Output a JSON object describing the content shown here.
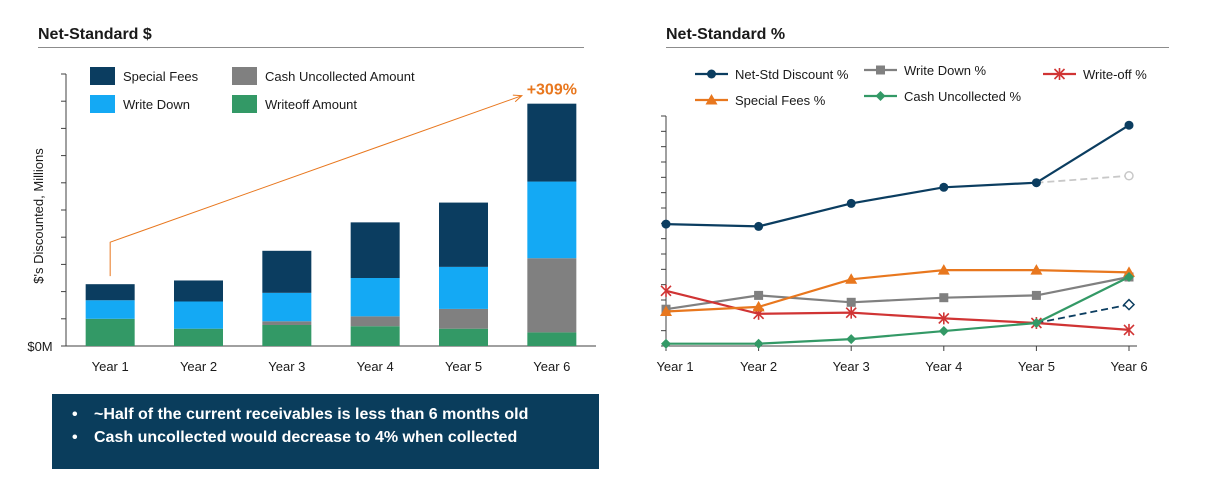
{
  "left_panel": {
    "title": "Net-Standard $"
  },
  "right_panel": {
    "title": "Net-Standard %"
  },
  "callout": {
    "bullets": [
      "~Half of the current receivables is less than 6 months old",
      "Cash uncollected would decrease to 4% when collected"
    ]
  },
  "chart_data": [
    {
      "type": "bar",
      "stacked": true,
      "title": "Net-Standard $",
      "ylabel": "$'s Discounted, Millions",
      "xlabel": "",
      "ylim": [
        0,
        110
      ],
      "y_tick_count": 11,
      "y_zero_label": "$0M",
      "categories": [
        "Year 1",
        "Year 2",
        "Year 3",
        "Year 4",
        "Year 5",
        "Year 6"
      ],
      "series": [
        {
          "name": "Writeoff Amount",
          "color": "#339966",
          "values": [
            11,
            7,
            8.5,
            8,
            7,
            5.5
          ]
        },
        {
          "name": "Cash Uncollected Amount",
          "color": "#808080",
          "values": [
            0,
            0,
            1.5,
            4,
            8,
            30
          ]
        },
        {
          "name": "Write Down",
          "color": "#14a9f4",
          "values": [
            7.5,
            11,
            11.5,
            15.5,
            17,
            31
          ]
        },
        {
          "name": "Special Fees",
          "color": "#0b3d60",
          "values": [
            6.5,
            8.5,
            17,
            22.5,
            26,
            31.5
          ]
        }
      ],
      "legend": [
        {
          "name": "Special Fees",
          "color": "#0b3d60"
        },
        {
          "name": "Cash Uncollected Amount",
          "color": "#808080"
        },
        {
          "name": "Write Down",
          "color": "#14a9f4"
        },
        {
          "name": "Writeoff Amount",
          "color": "#339966"
        }
      ],
      "annotation": {
        "text": "+309%",
        "color": "#e8771e",
        "from": "Year 1",
        "to": "Year 6"
      }
    },
    {
      "type": "line",
      "title": "Net-Standard %",
      "xlabel": "",
      "ylabel": "",
      "ylim": [
        0,
        100
      ],
      "y_tick_count": 16,
      "categories": [
        "Year 1",
        "Year 2",
        "Year 3",
        "Year 4",
        "Year 5",
        "Year 6"
      ],
      "series": [
        {
          "name": "Net-Std Discount %",
          "color": "#0b3d60",
          "marker": "circle",
          "values": [
            53,
            52,
            62,
            69,
            71,
            96
          ]
        },
        {
          "name": "Write Down %",
          "color": "#808080",
          "marker": "square",
          "values": [
            16,
            22,
            19,
            21,
            22,
            30
          ]
        },
        {
          "name": "Write-off %",
          "color": "#d03434",
          "marker": "asterisk",
          "values": [
            24,
            14,
            14.5,
            12,
            10,
            7
          ]
        },
        {
          "name": "Special Fees %",
          "color": "#e8771e",
          "marker": "triangle",
          "values": [
            15,
            17,
            29,
            33,
            33,
            32
          ]
        },
        {
          "name": "Cash Uncollected %",
          "color": "#339966",
          "marker": "diamond",
          "values": [
            1,
            1,
            3,
            6.5,
            10,
            30
          ]
        }
      ],
      "projections": [
        {
          "name": "Net-Std Discount % projected",
          "color": "#c8c8c8",
          "marker": "circle-open",
          "from": {
            "x": "Year 5",
            "y": 71
          },
          "to": {
            "x": "Year 6",
            "y": 74
          }
        },
        {
          "name": "Cash Uncollected % projected",
          "color": "#0b3d60",
          "marker": "diamond-open",
          "from": {
            "x": "Year 5",
            "y": 10
          },
          "to": {
            "x": "Year 6",
            "y": 18
          }
        }
      ],
      "legend": [
        {
          "name": "Net-Std Discount %",
          "color": "#0b3d60",
          "marker": "circle"
        },
        {
          "name": "Write Down %",
          "color": "#808080",
          "marker": "square"
        },
        {
          "name": "Write-off %",
          "color": "#d03434",
          "marker": "asterisk"
        },
        {
          "name": "Special Fees %",
          "color": "#e8771e",
          "marker": "triangle"
        },
        {
          "name": "Cash Uncollected %",
          "color": "#339966",
          "marker": "diamond"
        }
      ]
    }
  ]
}
